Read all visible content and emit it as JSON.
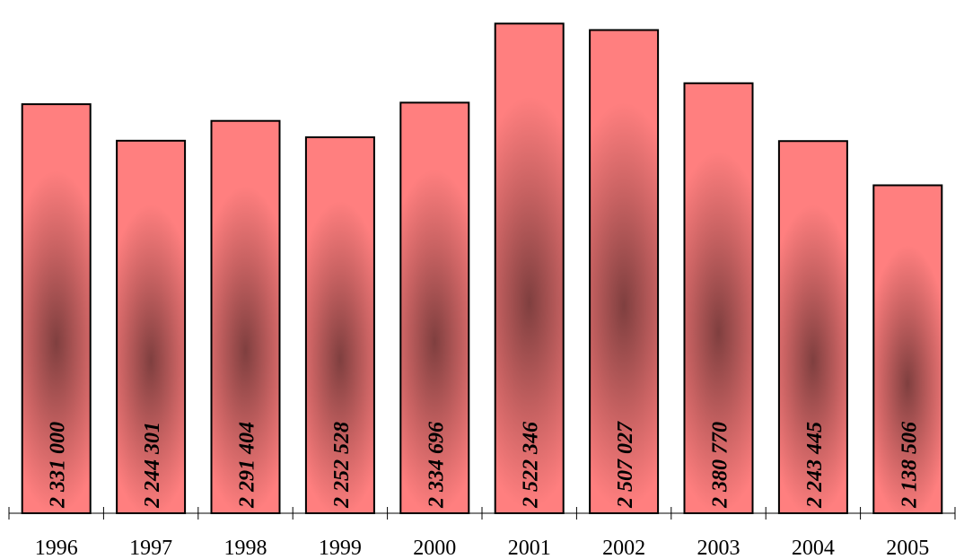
{
  "chart_data": {
    "type": "bar",
    "title": "",
    "xlabel": "",
    "ylabel": "",
    "categories": [
      "1996",
      "1997",
      "1998",
      "1999",
      "2000",
      "2001",
      "2002",
      "2003",
      "2004",
      "2005"
    ],
    "values": [
      2331000,
      2244301,
      2291404,
      2252528,
      2334696,
      2522346,
      2507027,
      2380770,
      2243445,
      2138506
    ],
    "value_labels": [
      "2 331 000",
      "2 244 301",
      "2 291 404",
      "2 252 528",
      "2 334 696",
      "2 522 346",
      "2 507 027",
      "2 380 770",
      "2 243 445",
      "2 138 506"
    ],
    "ylim": [
      1360000,
      2540000
    ],
    "grid": false,
    "legend": "none",
    "colors": {
      "bar_edge": "#ff7f7f",
      "bar_center": "#7f3f3f",
      "outline": "#000000"
    }
  }
}
